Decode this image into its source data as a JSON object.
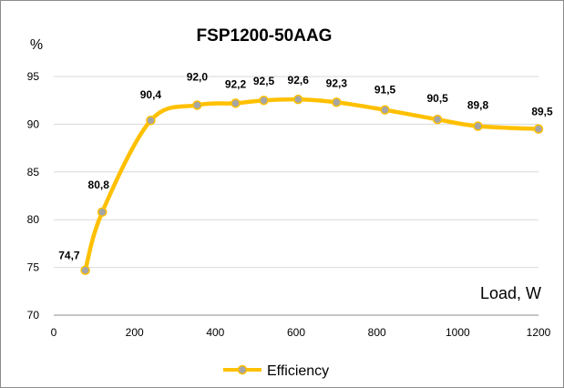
{
  "chart_data": {
    "type": "line",
    "title": "FSP1200-50AAG",
    "ylabel": "%",
    "xlabel": "Load, W",
    "xlim": [
      0,
      1200
    ],
    "ylim": [
      70,
      95
    ],
    "x_ticks": [
      "0",
      "200",
      "400",
      "600",
      "800",
      "1000",
      "1200"
    ],
    "y_ticks": [
      "70",
      "75",
      "80",
      "85",
      "90",
      "95"
    ],
    "grid": "horizontal",
    "legend_position": "bottom",
    "series": [
      {
        "name": "Efficiency",
        "color": "#FFC000",
        "marker_color": "#A5A5A5",
        "x": [
          78,
          120,
          240,
          355,
          450,
          520,
          605,
          700,
          820,
          950,
          1050,
          1200
        ],
        "y": [
          74.7,
          80.8,
          90.4,
          92.0,
          92.2,
          92.5,
          92.6,
          92.3,
          91.5,
          90.5,
          89.8,
          89.5
        ],
        "labels": [
          "74,7",
          "80,8",
          "90,4",
          "92,0",
          "92,2",
          "92,5",
          "92,6",
          "92,3",
          "91,5",
          "90,5",
          "89,8",
          "89,5"
        ]
      }
    ]
  }
}
